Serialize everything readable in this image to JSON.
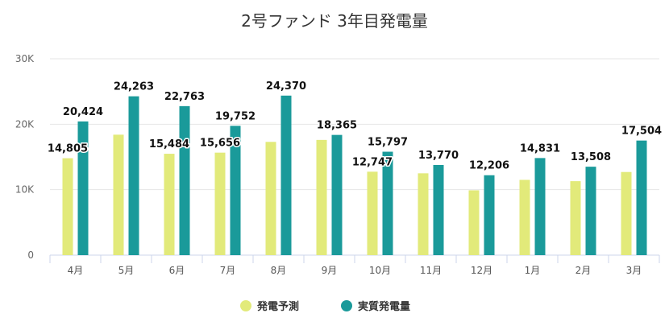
{
  "chart_data": {
    "type": "bar",
    "title": "2号ファンド 3年目発電量",
    "categories": [
      "4月",
      "5月",
      "6月",
      "7月",
      "8月",
      "9月",
      "10月",
      "11月",
      "12月",
      "1月",
      "2月",
      "3月"
    ],
    "ylim": [
      0,
      30000
    ],
    "yticks": [
      {
        "value": 0,
        "label": "0"
      },
      {
        "value": 10000,
        "label": "10K"
      },
      {
        "value": 20000,
        "label": "20K"
      },
      {
        "value": 30000,
        "label": "30K"
      }
    ],
    "grid": true,
    "legend_position": "bottom-center",
    "series": [
      {
        "name": "発電予測",
        "color": "#e2ea7a",
        "values": [
          14805,
          18400,
          15484,
          15656,
          17300,
          17600,
          12747,
          12500,
          9900,
          11500,
          11300,
          12700
        ],
        "labels": [
          "14,805",
          "",
          "15,484",
          "15,656",
          "",
          "",
          "12,747",
          "",
          "",
          "",
          "",
          ""
        ]
      },
      {
        "name": "実質発電量",
        "color": "#1a9a9a",
        "values": [
          20424,
          24263,
          22763,
          19752,
          24370,
          18365,
          15797,
          13770,
          12206,
          14831,
          13508,
          17504
        ],
        "labels": [
          "20,424",
          "24,263",
          "22,763",
          "19,752",
          "24,370",
          "18,365",
          "15,797",
          "13,770",
          "12,206",
          "14,831",
          "13,508",
          "17,504"
        ]
      }
    ]
  }
}
